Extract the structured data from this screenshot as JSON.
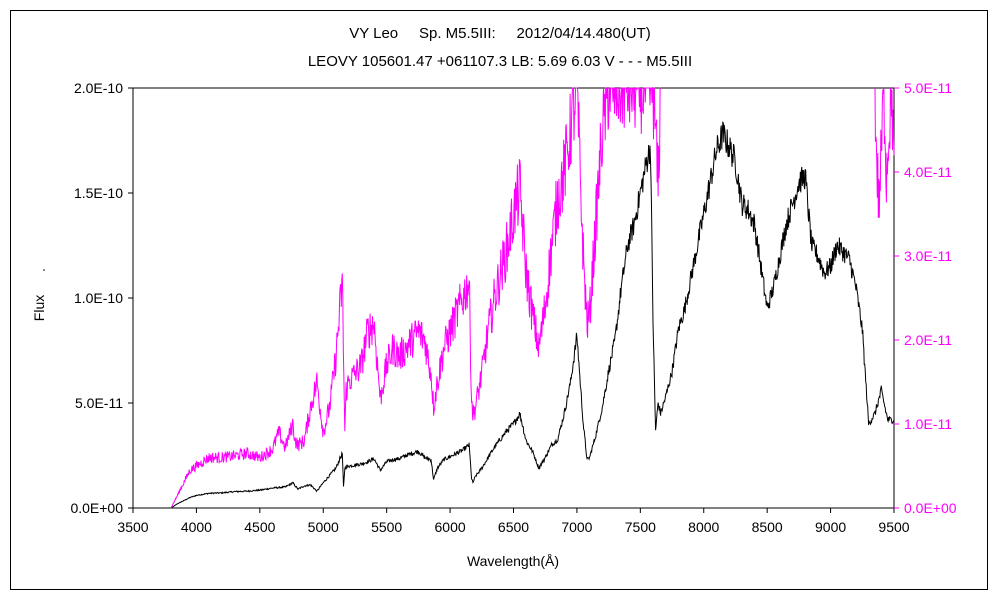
{
  "chart_data": {
    "type": "line",
    "title": "VY Leo     Sp. M5.5III:     2012/04/14.480(UT)",
    "subtitle": "LEOVY 105601.47 +061107.3 LB: 5.69 6.03 V - - - M5.5III",
    "xlabel": "Wavelength(Å)",
    "ylabel": "Flux",
    "xlim": [
      3500,
      9500
    ],
    "ylim_left": [
      0,
      2e-10
    ],
    "ylim_right": [
      0,
      5e-11
    ],
    "x_ticks": [
      "3500",
      "4000",
      "4500",
      "5000",
      "5500",
      "6000",
      "6500",
      "7000",
      "7500",
      "8000",
      "8500",
      "9000",
      "9500"
    ],
    "y_ticks_left": [
      "0.0E+00",
      "5.0E-11",
      "1.0E-10",
      "1.5E-10",
      "2.0E-10"
    ],
    "y_ticks_right": [
      "0.0E+00",
      "1.0E-11",
      "2.0E-11",
      "3.0E-11",
      "4.0E-11",
      "5.0E-11"
    ],
    "colors": {
      "primary": "#000000",
      "secondary": "#ff00ff"
    },
    "series": [
      {
        "axis": "left",
        "color": "#000000",
        "x": [
          3800,
          3850,
          3900,
          3950,
          4000,
          4100,
          4200,
          4300,
          4400,
          4500,
          4600,
          4700,
          4760,
          4800,
          4850,
          4900,
          4950,
          5000,
          5050,
          5100,
          5150,
          5160,
          5170,
          5200,
          5250,
          5300,
          5350,
          5400,
          5450,
          5500,
          5550,
          5600,
          5650,
          5700,
          5750,
          5800,
          5850,
          5870,
          5900,
          5950,
          6000,
          6050,
          6100,
          6150,
          6170,
          6180,
          6200,
          6250,
          6300,
          6350,
          6400,
          6450,
          6500,
          6550,
          6600,
          6650,
          6700,
          6750,
          6800,
          6850,
          6900,
          6950,
          7000,
          7050,
          7080,
          7100,
          7150,
          7200,
          7250,
          7300,
          7350,
          7400,
          7450,
          7500,
          7550,
          7580,
          7600,
          7620,
          7640,
          7660,
          7700,
          7750,
          7800,
          7850,
          7900,
          7950,
          8000,
          8050,
          8100,
          8150,
          8200,
          8250,
          8300,
          8350,
          8400,
          8450,
          8500,
          8550,
          8600,
          8650,
          8700,
          8750,
          8800,
          8850,
          8900,
          8950,
          9000,
          9050,
          9100,
          9150,
          9200,
          9250,
          9300,
          9350,
          9400,
          9450,
          9500
        ],
        "values": [
          0.0,
          2e-12,
          3.5e-12,
          5e-12,
          6e-12,
          7e-12,
          7.2e-12,
          7.8e-12,
          8e-12,
          8.5e-12,
          9.5e-12,
          1e-11,
          1.2e-11,
          9e-12,
          1.05e-11,
          1.1e-11,
          8e-12,
          1.2e-11,
          1.55e-11,
          1.9e-11,
          2.6e-11,
          1e-11,
          1.9e-11,
          2e-11,
          2.05e-11,
          2.1e-11,
          2.2e-11,
          2.35e-11,
          1.8e-11,
          2.2e-11,
          2.3e-11,
          2.35e-11,
          2.5e-11,
          2.6e-11,
          2.7e-11,
          2.4e-11,
          2.3e-11,
          1.35e-11,
          1.9e-11,
          2.3e-11,
          2.45e-11,
          2.6e-11,
          2.75e-11,
          3e-11,
          1.4e-11,
          1.2e-11,
          1.5e-11,
          1.9e-11,
          2.4e-11,
          2.9e-11,
          3.3e-11,
          3.7e-11,
          4e-11,
          4.5e-11,
          3.2e-11,
          2.7e-11,
          1.9e-11,
          2.4e-11,
          3e-11,
          3.3e-11,
          4.5e-11,
          6e-11,
          8.2e-11,
          4e-11,
          2.3e-11,
          2.4e-11,
          3.5e-11,
          4.8e-11,
          6.5e-11,
          8e-11,
          1.05e-10,
          1.25e-10,
          1.35e-10,
          1.5e-10,
          1.65e-10,
          1.72e-10,
          9e-11,
          3.7e-11,
          5e-11,
          4.5e-11,
          5.3e-11,
          6.5e-11,
          8.5e-11,
          9.5e-11,
          1.1e-10,
          1.25e-10,
          1.4e-10,
          1.55e-10,
          1.7e-10,
          1.78e-10,
          1.72e-10,
          1.65e-10,
          1.45e-10,
          1.42e-10,
          1.35e-10,
          1.15e-10,
          9.5e-11,
          1.05e-10,
          1.2e-10,
          1.35e-10,
          1.45e-10,
          1.55e-10,
          1.58e-10,
          1.25e-10,
          1.2e-10,
          1.12e-10,
          1.15e-10,
          1.25e-10,
          1.22e-10,
          1.18e-10,
          1.05e-10,
          8.5e-11,
          4e-11,
          4.5e-11,
          5.6e-11,
          4.2e-11,
          4.2e-11
        ]
      },
      {
        "axis": "right",
        "color": "#ff00ff",
        "x": [
          3800,
          3850,
          3900,
          3950,
          4000,
          4100,
          4200,
          4300,
          4400,
          4500,
          4600,
          4650,
          4700,
          4760,
          4780,
          4800,
          4850,
          4900,
          4950,
          5000,
          5050,
          5100,
          5150,
          5170,
          5180,
          5200,
          5250,
          5300,
          5350,
          5400,
          5450,
          5500,
          5550,
          5600,
          5650,
          5700,
          5750,
          5800,
          5850,
          5870,
          5900,
          5950,
          6000,
          6050,
          6100,
          6150,
          6170,
          6180,
          6200,
          6250,
          6300,
          6350,
          6400,
          6450,
          6500,
          6550,
          6600,
          6650,
          6700,
          6750,
          6800,
          6850,
          6900,
          6950,
          7000,
          7050,
          7080,
          7100,
          7150,
          7200,
          7250,
          7300,
          7350,
          7400,
          7450,
          7500,
          7550,
          7580,
          7600,
          7620,
          7640,
          7660
        ],
        "values": [
          0.0,
          1.5e-12,
          3e-12,
          4.5e-12,
          5e-12,
          6e-12,
          6e-12,
          6.2e-12,
          6.5e-12,
          6e-12,
          7e-12,
          9e-12,
          7.2e-12,
          1e-11,
          8e-12,
          7.5e-12,
          8e-12,
          1.2e-11,
          1.5e-11,
          9e-12,
          1.2e-11,
          1.8e-11,
          2.7e-11,
          9e-12,
          1.4e-11,
          1.5e-11,
          1.6e-11,
          1.7e-11,
          2.1e-11,
          2.2e-11,
          1.3e-11,
          1.7e-11,
          1.9e-11,
          1.8e-11,
          1.9e-11,
          2e-11,
          2.1e-11,
          2e-11,
          1.6e-11,
          1.2e-11,
          1.5e-11,
          1.9e-11,
          2.1e-11,
          2.3e-11,
          2.5e-11,
          2.7e-11,
          1.3e-11,
          1.1e-11,
          1.2e-11,
          1.6e-11,
          2.1e-11,
          2.5e-11,
          2.8e-11,
          3.1e-11,
          3.5e-11,
          3.8e-11,
          2.8e-11,
          2.3e-11,
          1.9e-11,
          2.4e-11,
          3.1e-11,
          3.7e-11,
          4e-11,
          4.5e-11,
          5e-11,
          3e-11,
          2.2e-11,
          2.3e-11,
          3.4e-11,
          4.5e-11,
          5e-11,
          5e-11,
          5e-11,
          5e-11,
          5e-11,
          5e-11,
          5e-11,
          5e-11,
          5e-11,
          4.5e-11,
          3.8e-11,
          5e-11
        ]
      },
      {
        "axis": "right",
        "color": "#ff00ff",
        "x": [
          9350,
          9360,
          9380,
          9400,
          9420,
          9440,
          9460,
          9480,
          9500
        ],
        "values": [
          5e-11,
          4.3e-11,
          3.6e-11,
          4.2e-11,
          5e-11,
          4e-11,
          4.5e-11,
          5e-11,
          4.2e-11
        ]
      }
    ]
  }
}
